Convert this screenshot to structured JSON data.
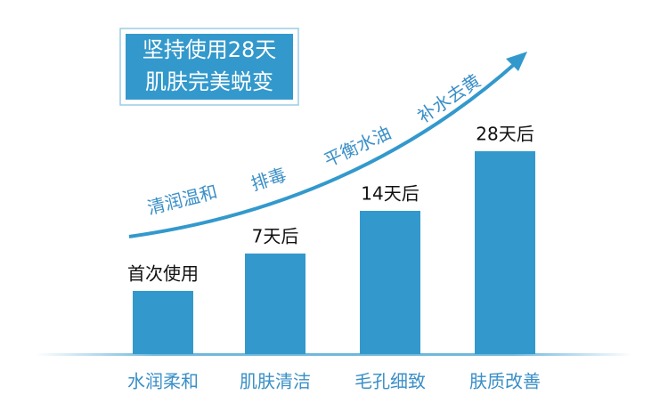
{
  "chart_data": {
    "type": "bar",
    "title": [
      "坚持使用28天",
      "肌肤完美蜕变"
    ],
    "annotations": [
      "清润温和",
      "排毒",
      "平衡水油",
      "补水去黄"
    ],
    "categories": [
      "水润柔和",
      "肌肤清洁",
      "毛孔细致",
      "肤质改善"
    ],
    "bar_labels": [
      "首次使用",
      "7天后",
      "14天后",
      "28天后"
    ],
    "values": [
      71,
      113,
      161,
      228
    ],
    "ylim": [
      0,
      250
    ],
    "color": "#3399cc"
  }
}
